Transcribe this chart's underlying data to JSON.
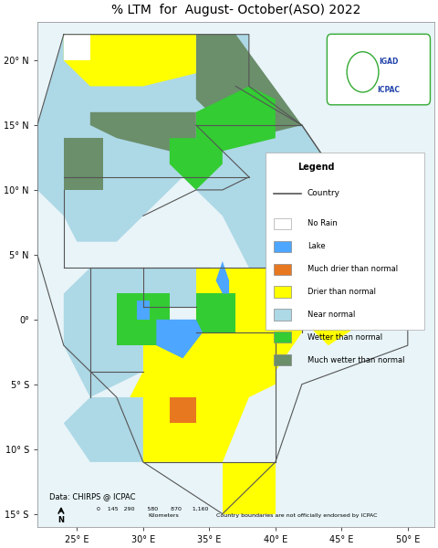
{
  "title": "% LTM  for  August- October(ASO) 2022",
  "title_fontsize": 10,
  "xlabel_ticks": [
    "25° E",
    "30° E",
    "35° E",
    "40° E",
    "45° E",
    "50° E"
  ],
  "xlabel_vals": [
    25,
    30,
    35,
    40,
    45,
    50
  ],
  "ylabel_ticks": [
    "20° N",
    "15° N",
    "10° N",
    "5° N",
    "0°",
    "5° S",
    "10° S",
    "15° S"
  ],
  "ylabel_vals": [
    20,
    15,
    10,
    5,
    0,
    -5,
    -10,
    -15
  ],
  "xlim": [
    22,
    52
  ],
  "ylim": [
    -16,
    23
  ],
  "bg_color": "#ffffff",
  "map_bg": "#ffffff",
  "legend_items": [
    {
      "label": "Country",
      "color": "#666666",
      "type": "line"
    },
    {
      "label": "No Rain",
      "color": "#ffffff",
      "type": "patch"
    },
    {
      "label": "Lake",
      "color": "#4da6ff",
      "type": "patch"
    },
    {
      "label": "Much drier than normal",
      "color": "#e87820",
      "type": "patch"
    },
    {
      "label": "Drier than normal",
      "color": "#ffff00",
      "type": "patch"
    },
    {
      "label": "Near normal",
      "color": "#add8e6",
      "type": "patch"
    },
    {
      "label": "Wetter than normal",
      "color": "#33cc33",
      "type": "patch"
    },
    {
      "label": "Much wetter than normal",
      "color": "#6b8e6b",
      "type": "patch"
    }
  ],
  "data_source": "Data: CHIRPS @ ICPAC",
  "disclaimer": "Country boundaries are not officially endorsed by ICPAC",
  "scale_label": "Kilometers",
  "scale_ticks": [
    "0",
    "145",
    "290",
    "580",
    "870",
    "1,160"
  ],
  "colors": {
    "much_drier": "#e87820",
    "drier": "#ffff00",
    "near_normal": "#add8e6",
    "wetter": "#33cc33",
    "much_wetter": "#6b8e6b",
    "lake": "#4da6ff",
    "no_rain": "#ffffff",
    "country_border": "#555555",
    "outer_border": "#aaaaaa",
    "water": "#e8f4f8"
  }
}
